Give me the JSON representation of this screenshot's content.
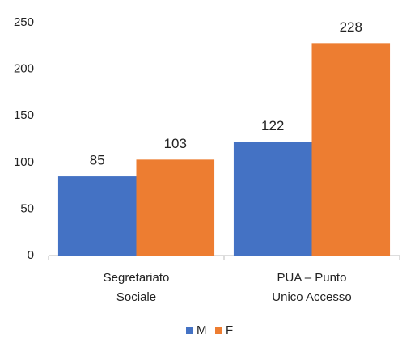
{
  "chart_data": {
    "type": "bar",
    "categories": [
      [
        "Segretariato",
        "Sociale"
      ],
      [
        "PUA – Punto",
        "Unico Accesso"
      ]
    ],
    "series": [
      {
        "name": "M",
        "color": "#4472c4",
        "values": [
          85,
          122
        ]
      },
      {
        "name": "F",
        "color": "#ed7d31",
        "values": [
          103,
          228
        ]
      }
    ],
    "ylim": [
      0,
      250
    ],
    "yticks": [
      0,
      50,
      100,
      150,
      200,
      250
    ],
    "grid": false,
    "legend": "bottom"
  }
}
